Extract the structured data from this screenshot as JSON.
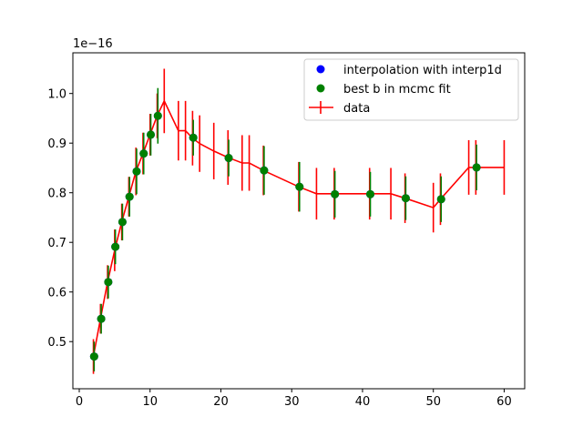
{
  "chart_data": {
    "type": "scatter",
    "offset_label": "1e−16",
    "xlim": [
      -0.9,
      62.9
    ],
    "ylim": [
      0.405,
      1.082
    ],
    "x_ticks": [
      0,
      10,
      20,
      30,
      40,
      50,
      60
    ],
    "y_ticks": [
      0.5,
      0.6,
      0.7,
      0.8,
      0.9,
      1.0
    ],
    "y_tick_labels": [
      "0.5",
      "0.6",
      "0.7",
      "0.8",
      "0.9",
      "1.0"
    ],
    "grid": false,
    "legend_position": "upper-right",
    "series": [
      {
        "name": "interpolation with interp1d",
        "kind": "markers",
        "color": "#0000ff",
        "x": [
          2.1,
          3.1,
          4.1,
          5.1,
          6.1,
          7.1,
          8.1,
          9.1,
          10.1,
          11.1,
          16.1,
          21.1,
          26.1,
          31.1,
          36.1,
          41.1,
          46.1,
          51.1,
          56.1
        ],
        "y": [
          0.47,
          0.546,
          0.62,
          0.691,
          0.741,
          0.792,
          0.843,
          0.879,
          0.917,
          0.955,
          0.911,
          0.87,
          0.845,
          0.812,
          0.797,
          0.797,
          0.789,
          0.787,
          0.851
        ]
      },
      {
        "name": "best b in mcmc fit",
        "kind": "markers_errorbars",
        "color": "#008000",
        "x": [
          2.1,
          3.1,
          4.1,
          5.1,
          6.1,
          7.1,
          8.1,
          9.1,
          10.1,
          11.1,
          16.1,
          21.1,
          26.1,
          31.1,
          36.1,
          41.1,
          46.1,
          51.1,
          56.1
        ],
        "y": [
          0.47,
          0.546,
          0.62,
          0.691,
          0.741,
          0.792,
          0.843,
          0.879,
          0.917,
          0.955,
          0.911,
          0.87,
          0.845,
          0.812,
          0.797,
          0.797,
          0.789,
          0.787,
          0.851
        ],
        "yerr": [
          0.03,
          0.03,
          0.033,
          0.035,
          0.037,
          0.04,
          0.046,
          0.042,
          0.042,
          0.056,
          0.036,
          0.037,
          0.049,
          0.05,
          0.047,
          0.045,
          0.044,
          0.046,
          0.046
        ]
      },
      {
        "name": "data",
        "kind": "line_errorbars",
        "color": "#ff0000",
        "x": [
          2,
          3,
          4,
          5,
          6,
          7,
          8,
          9,
          10,
          11,
          12,
          14,
          15,
          16,
          17,
          19,
          21,
          23,
          24,
          26,
          31,
          33.5,
          36,
          41,
          44,
          46,
          50,
          51,
          55,
          56,
          60
        ],
        "y": [
          0.47,
          0.546,
          0.62,
          0.684,
          0.741,
          0.792,
          0.843,
          0.879,
          0.917,
          0.955,
          0.985,
          0.925,
          0.925,
          0.91,
          0.899,
          0.884,
          0.871,
          0.86,
          0.86,
          0.845,
          0.812,
          0.798,
          0.798,
          0.798,
          0.798,
          0.789,
          0.77,
          0.787,
          0.851,
          0.851,
          0.851
        ],
        "yerr": [
          0.035,
          0.03,
          0.034,
          0.042,
          0.037,
          0.04,
          0.048,
          0.042,
          0.042,
          0.045,
          0.065,
          0.06,
          0.06,
          0.055,
          0.057,
          0.057,
          0.055,
          0.056,
          0.056,
          0.05,
          0.05,
          0.052,
          0.052,
          0.052,
          0.052,
          0.05,
          0.05,
          0.052,
          0.055,
          0.055,
          0.055
        ]
      }
    ]
  }
}
